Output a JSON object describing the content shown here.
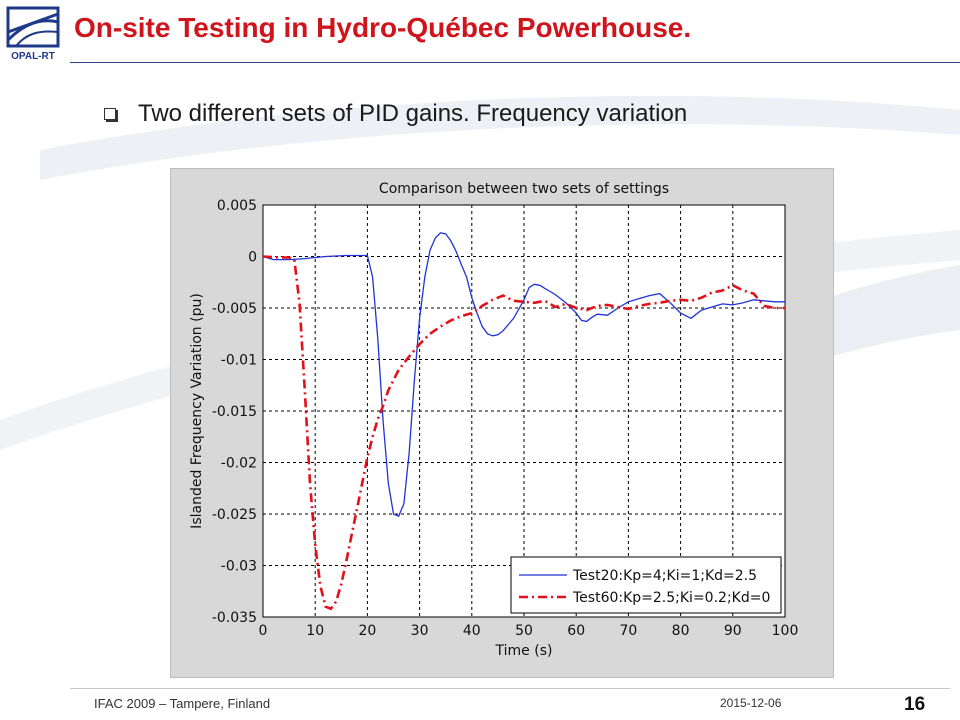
{
  "slide": {
    "title": "On-site Testing in Hydro-Québec Powerhouse.",
    "bullet": "Two different sets of PID gains. Frequency variation",
    "logo_text": "OPAL-RT",
    "footer_left": "IFAC 2009 – Tampere, Finland",
    "footer_date": "2015-12-06",
    "page_number": "16"
  },
  "colors": {
    "title": "#d0141c",
    "series1": "#2033d8",
    "series2": "#e3101a"
  },
  "chart_data": {
    "type": "line",
    "title": "Comparison between two sets of settings",
    "xlabel": "Time (s)",
    "ylabel": "Islanded Frequency Variation (pu)",
    "xlim": [
      0,
      100
    ],
    "ylim": [
      -0.035,
      0.005
    ],
    "xticks": [
      0,
      10,
      20,
      30,
      40,
      50,
      60,
      70,
      80,
      90,
      100
    ],
    "yticks": [
      0.005,
      0,
      -0.005,
      -0.01,
      -0.015,
      -0.02,
      -0.025,
      -0.03,
      -0.035
    ],
    "ytick_labels": [
      "0.005",
      "0",
      "-0.005",
      "-0.01",
      "-0.015",
      "-0.02",
      "-0.025",
      "-0.03",
      "-0.035"
    ],
    "grid": true,
    "legend_position": "bottom-right",
    "series": [
      {
        "name": "Test20:Kp=4;Ki=1;Kd=2.5",
        "style": "solid",
        "x": [
          0,
          2,
          5,
          8,
          12,
          16,
          20,
          21,
          22,
          23,
          24,
          25,
          26,
          27,
          28,
          29,
          30,
          31,
          32,
          33,
          34,
          35,
          36,
          37,
          38,
          39,
          40,
          41,
          42,
          43,
          44,
          45,
          46,
          48,
          50,
          51,
          52,
          53,
          54,
          55,
          56,
          58,
          60,
          61,
          62,
          63,
          64,
          66,
          68,
          70,
          72,
          74,
          76,
          78,
          80,
          82,
          84,
          86,
          88,
          90,
          92,
          94,
          96,
          98,
          100
        ],
        "y": [
          0,
          -0.0003,
          -0.0003,
          -0.0002,
          0,
          0.0001,
          0.0001,
          -0.002,
          -0.008,
          -0.016,
          -0.022,
          -0.025,
          -0.0252,
          -0.024,
          -0.019,
          -0.012,
          -0.006,
          -0.002,
          0.0006,
          0.0018,
          0.0023,
          0.0022,
          0.0015,
          0.0005,
          -0.0008,
          -0.002,
          -0.004,
          -0.0055,
          -0.0068,
          -0.0075,
          -0.0077,
          -0.0076,
          -0.0072,
          -0.006,
          -0.0042,
          -0.003,
          -0.0027,
          -0.0028,
          -0.0031,
          -0.0034,
          -0.0037,
          -0.0045,
          -0.0055,
          -0.0062,
          -0.0063,
          -0.0059,
          -0.0056,
          -0.0057,
          -0.005,
          -0.0044,
          -0.0041,
          -0.0038,
          -0.0036,
          -0.0045,
          -0.0055,
          -0.006,
          -0.0052,
          -0.0049,
          -0.0046,
          -0.0047,
          -0.0045,
          -0.0042,
          -0.0043,
          -0.0044,
          -0.0044
        ]
      },
      {
        "name": "Test60:Kp=2.5;Ki=0.2;Kd=0",
        "style": "dashdot",
        "x": [
          0,
          3,
          5,
          6,
          7,
          8,
          9,
          10,
          11,
          12,
          13,
          14,
          15,
          16,
          17,
          18,
          19,
          20,
          21,
          22,
          23,
          24,
          25,
          26,
          28,
          30,
          32,
          34,
          36,
          38,
          40,
          42,
          44,
          46,
          48,
          50,
          52,
          54,
          56,
          58,
          60,
          62,
          64,
          66,
          68,
          70,
          72,
          74,
          76,
          78,
          80,
          82,
          84,
          86,
          88,
          90,
          92,
          94,
          96,
          98,
          100
        ],
        "y": [
          0,
          -0.0001,
          -0.0001,
          -0.0003,
          -0.0045,
          -0.013,
          -0.022,
          -0.028,
          -0.032,
          -0.034,
          -0.0342,
          -0.0335,
          -0.0318,
          -0.0295,
          -0.027,
          -0.0245,
          -0.022,
          -0.0195,
          -0.0175,
          -0.0158,
          -0.0145,
          -0.013,
          -0.012,
          -0.011,
          -0.0097,
          -0.0085,
          -0.0075,
          -0.0068,
          -0.0062,
          -0.0058,
          -0.0055,
          -0.0048,
          -0.0042,
          -0.0038,
          -0.0043,
          -0.0044,
          -0.0045,
          -0.0043,
          -0.0049,
          -0.0046,
          -0.005,
          -0.0052,
          -0.0048,
          -0.0047,
          -0.0049,
          -0.0051,
          -0.0048,
          -0.0046,
          -0.0045,
          -0.0043,
          -0.0042,
          -0.0043,
          -0.004,
          -0.0035,
          -0.0033,
          -0.0028,
          -0.0033,
          -0.0036,
          -0.0048,
          -0.005,
          -0.005
        ]
      }
    ]
  }
}
